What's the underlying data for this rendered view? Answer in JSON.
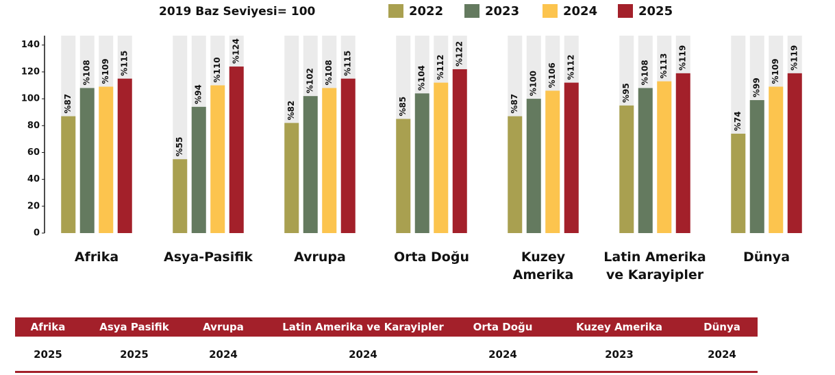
{
  "chart_data": {
    "type": "bar",
    "subtitle": "2019 Baz Seviyesi= 100",
    "categories": [
      "Afrika",
      "Asya-Pasifik",
      "Avrupa",
      "Orta Doğu",
      "Kuzey Amerika",
      "Latin Amerika ve Karayipler",
      "Dünya"
    ],
    "series": [
      {
        "name": "2022",
        "color": "#a9a050",
        "values": [
          87,
          55,
          82,
          85,
          87,
          95,
          74
        ],
        "value_labels": [
          "%87",
          "%55",
          "%82",
          "%85",
          "%87",
          "%95",
          "%74"
        ]
      },
      {
        "name": "2023",
        "color": "#647a5f",
        "values": [
          108,
          94,
          102,
          104,
          100,
          108,
          99
        ],
        "value_labels": [
          "%108",
          "%94",
          "%102",
          "%104",
          "%100",
          "%108",
          "%99"
        ]
      },
      {
        "name": "2024",
        "color": "#fcc44e",
        "values": [
          109,
          110,
          108,
          112,
          106,
          113,
          109
        ],
        "value_labels": [
          "%109",
          "%110",
          "%108",
          "%112",
          "%106",
          "%113",
          "%109"
        ]
      },
      {
        "name": "2025",
        "color": "#a3202a",
        "values": [
          115,
          124,
          115,
          122,
          112,
          119,
          119
        ],
        "value_labels": [
          "%115",
          "%124",
          "%115",
          "%122",
          "%112",
          "%119",
          "%119"
        ]
      }
    ],
    "ylim": [
      0,
      147
    ],
    "yticks": [
      0,
      20,
      40,
      60,
      80,
      100,
      120,
      140
    ],
    "background_color": "#ebebeb"
  },
  "table": {
    "columns": [
      "Afrika",
      "Asya Pasifik",
      "Avrupa",
      "Latin Amerika ve Karayipler",
      "Orta Doğu",
      "Kuzey Amerika",
      "Dünya"
    ],
    "rows": [
      [
        "2025",
        "2025",
        "2024",
        "2024",
        "2024",
        "2023",
        "2024"
      ]
    ]
  }
}
